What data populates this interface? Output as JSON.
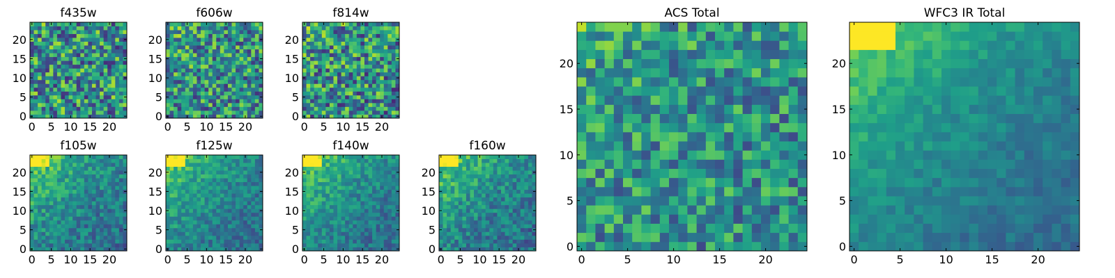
{
  "chart_data": [
    {
      "type": "heatmap",
      "title": "f435w",
      "size": 25,
      "colormap": "viridis",
      "gradient": 0.05,
      "noise": 0.75,
      "seed": 11,
      "xlim": [
        0,
        24
      ],
      "ylim": [
        0,
        24
      ],
      "xticks": [
        "0",
        "5",
        "10",
        "15",
        "20"
      ],
      "yticks": [
        "0",
        "5",
        "10",
        "15",
        "20"
      ]
    },
    {
      "type": "heatmap",
      "title": "f606w",
      "size": 25,
      "colormap": "viridis",
      "gradient": 0.1,
      "noise": 0.7,
      "seed": 23,
      "xlim": [
        0,
        24
      ],
      "ylim": [
        0,
        24
      ],
      "xticks": [
        "0",
        "5",
        "10",
        "15",
        "20"
      ],
      "yticks": [
        "0",
        "5",
        "10",
        "15",
        "20"
      ]
    },
    {
      "type": "heatmap",
      "title": "f814w",
      "size": 25,
      "colormap": "viridis",
      "gradient": 0.12,
      "noise": 0.75,
      "seed": 37,
      "xlim": [
        0,
        24
      ],
      "ylim": [
        0,
        24
      ],
      "xticks": [
        "0",
        "5",
        "10",
        "15",
        "20"
      ],
      "yticks": [
        "0",
        "5",
        "10",
        "15",
        "20"
      ]
    },
    {
      "type": "heatmap",
      "title": "f105w",
      "size": 25,
      "colormap": "viridis",
      "gradient": 0.55,
      "noise": 0.35,
      "seed": 41,
      "xlim": [
        0,
        24
      ],
      "ylim": [
        0,
        24
      ],
      "xticks": [
        "0",
        "5",
        "10",
        "15",
        "20"
      ],
      "yticks": [
        "0",
        "5",
        "10",
        "15",
        "20"
      ]
    },
    {
      "type": "heatmap",
      "title": "f125w",
      "size": 25,
      "colormap": "viridis",
      "gradient": 0.55,
      "noise": 0.3,
      "seed": 53,
      "xlim": [
        0,
        24
      ],
      "ylim": [
        0,
        24
      ],
      "xticks": [
        "0",
        "5",
        "10",
        "15",
        "20"
      ],
      "yticks": [
        "0",
        "5",
        "10",
        "15",
        "20"
      ]
    },
    {
      "type": "heatmap",
      "title": "f140w",
      "size": 25,
      "colormap": "viridis",
      "gradient": 0.55,
      "noise": 0.3,
      "seed": 67,
      "xlim": [
        0,
        24
      ],
      "ylim": [
        0,
        24
      ],
      "xticks": [
        "0",
        "5",
        "10",
        "15",
        "20"
      ],
      "yticks": [
        "0",
        "5",
        "10",
        "15",
        "20"
      ]
    },
    {
      "type": "heatmap",
      "title": "f160w",
      "size": 25,
      "colormap": "viridis",
      "gradient": 0.55,
      "noise": 0.35,
      "seed": 79,
      "xlim": [
        0,
        24
      ],
      "ylim": [
        0,
        24
      ],
      "xticks": [
        "0",
        "5",
        "10",
        "15",
        "20"
      ],
      "yticks": [
        "0",
        "5",
        "10",
        "15",
        "20"
      ]
    },
    {
      "type": "heatmap",
      "title": "ACS Total",
      "size": 25,
      "colormap": "viridis",
      "gradient": 0.12,
      "noise": 0.55,
      "seed": 97,
      "xlim": [
        0,
        24
      ],
      "ylim": [
        0,
        24
      ],
      "xticks": [
        "0",
        "5",
        "10",
        "15",
        "20"
      ],
      "yticks": [
        "0",
        "5",
        "10",
        "15",
        "20"
      ]
    },
    {
      "type": "heatmap",
      "title": "WFC3 IR Total",
      "size": 25,
      "colormap": "viridis",
      "gradient": 0.6,
      "noise": 0.18,
      "seed": 101,
      "xlim": [
        0,
        24
      ],
      "ylim": [
        0,
        24
      ],
      "xticks": [
        "0",
        "5",
        "10",
        "15",
        "20"
      ],
      "yticks": [
        "0",
        "5",
        "10",
        "15",
        "20"
      ]
    }
  ]
}
